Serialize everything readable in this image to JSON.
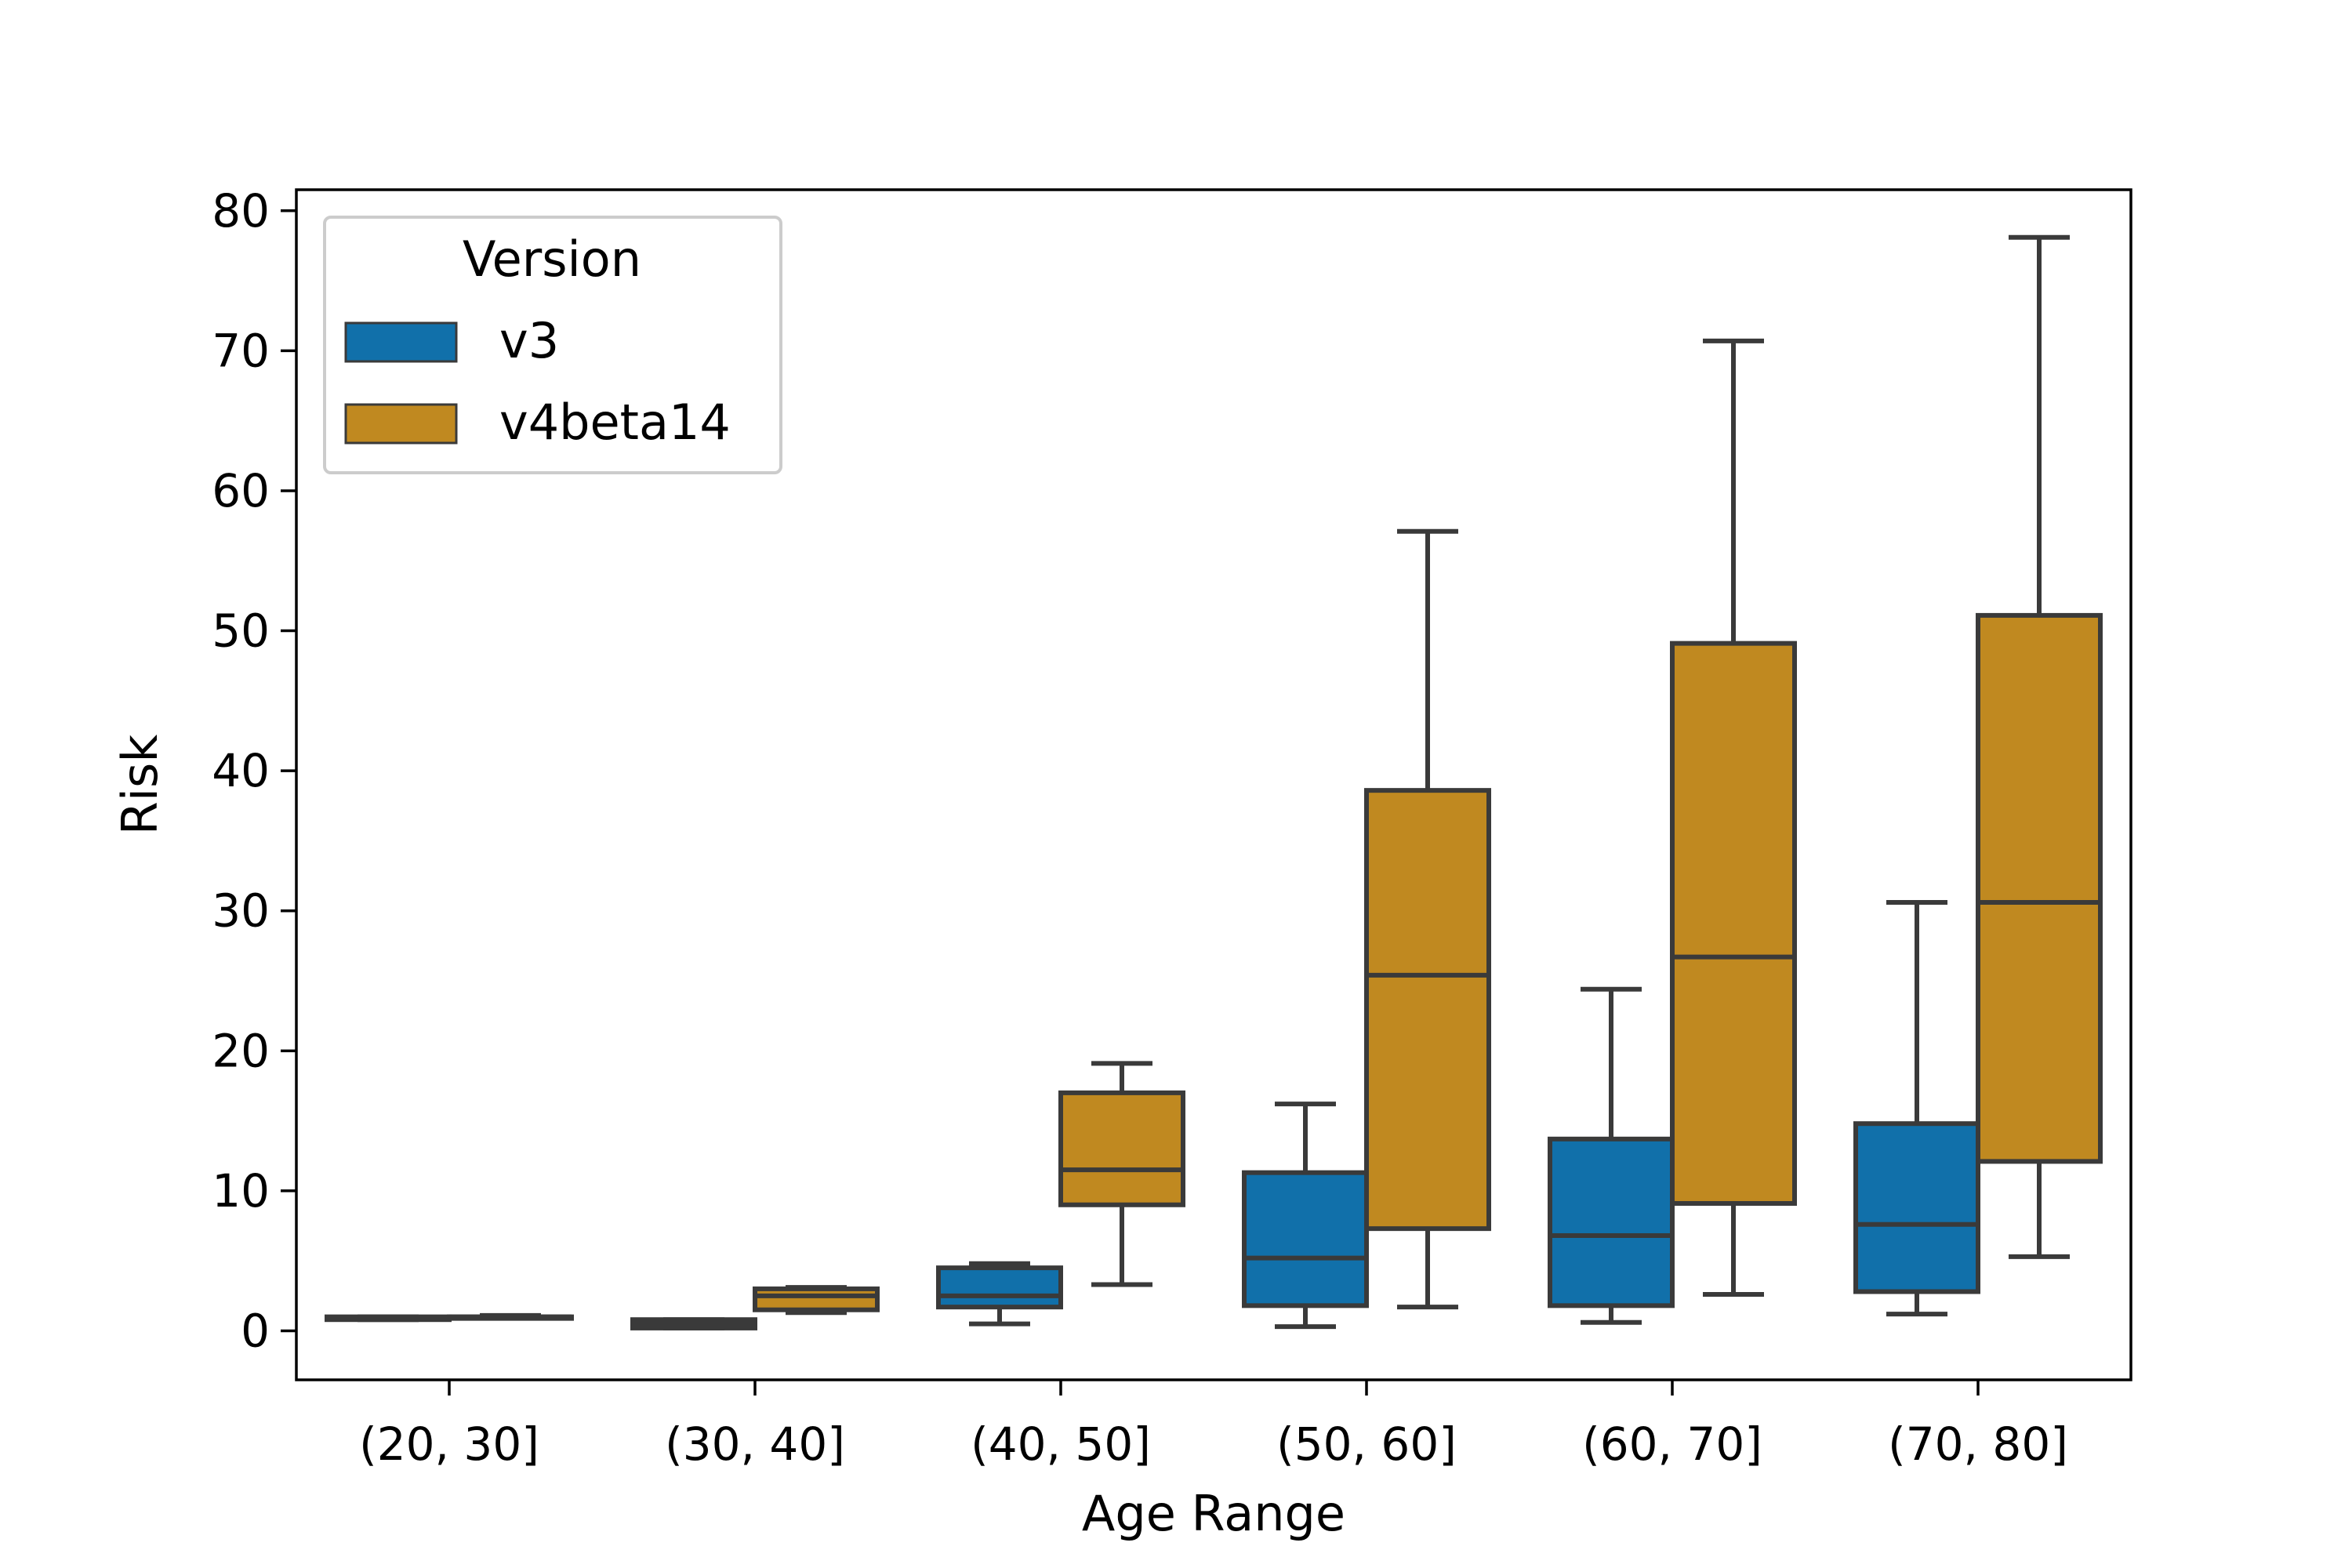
{
  "chart_data": {
    "type": "box",
    "xlabel": "Age Range",
    "ylabel": "Risk",
    "ylim": [
      -3.5,
      81.5
    ],
    "yticks": [
      0,
      10,
      20,
      30,
      40,
      50,
      60,
      70,
      80
    ],
    "categories": [
      "(20, 30]",
      "(30, 40]",
      "(40, 50]",
      "(50, 60]",
      "(60, 70]",
      "(70, 80]"
    ],
    "legend": {
      "title": "Version",
      "position": "top-left"
    },
    "grid": false,
    "series": [
      {
        "name": "v3",
        "color": "#1170aa",
        "boxes": [
          {
            "whisker_low": 0.8,
            "q1": 0.8,
            "median": 0.9,
            "q3": 1.0,
            "whisker_high": 1.0
          },
          {
            "whisker_low": 0.2,
            "q1": 0.2,
            "median": 0.5,
            "q3": 0.8,
            "whisker_high": 0.8
          },
          {
            "whisker_low": 0.5,
            "q1": 1.7,
            "median": 2.5,
            "q3": 4.5,
            "whisker_high": 4.8
          },
          {
            "whisker_low": 0.3,
            "q1": 1.8,
            "median": 5.2,
            "q3": 11.3,
            "whisker_high": 16.2
          },
          {
            "whisker_low": 0.6,
            "q1": 1.8,
            "median": 6.8,
            "q3": 13.7,
            "whisker_high": 24.4
          },
          {
            "whisker_low": 1.2,
            "q1": 2.8,
            "median": 7.6,
            "q3": 14.8,
            "whisker_high": 30.6
          }
        ]
      },
      {
        "name": "v4beta14",
        "color": "#c08920",
        "boxes": [
          {
            "whisker_low": 0.9,
            "q1": 0.9,
            "median": 1.0,
            "q3": 1.0,
            "whisker_high": 1.1
          },
          {
            "whisker_low": 1.3,
            "q1": 1.5,
            "median": 2.5,
            "q3": 3.0,
            "whisker_high": 3.1
          },
          {
            "whisker_low": 3.3,
            "q1": 9.0,
            "median": 11.5,
            "q3": 17.0,
            "whisker_high": 19.1
          },
          {
            "whisker_low": 1.7,
            "q1": 7.3,
            "median": 25.4,
            "q3": 38.6,
            "whisker_high": 57.1
          },
          {
            "whisker_low": 2.6,
            "q1": 9.1,
            "median": 26.7,
            "q3": 49.1,
            "whisker_high": 70.7
          },
          {
            "whisker_low": 5.3,
            "q1": 12.1,
            "median": 30.6,
            "q3": 51.1,
            "whisker_high": 78.1
          }
        ]
      }
    ]
  }
}
